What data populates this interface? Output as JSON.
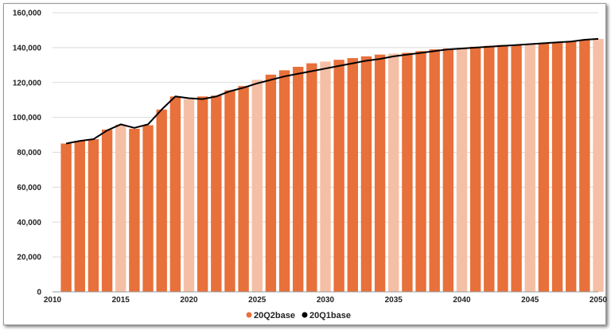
{
  "chart_data": {
    "type": "bar",
    "title": "",
    "xlabel": "",
    "ylabel": "",
    "x": [
      2011,
      2012,
      2013,
      2014,
      2015,
      2016,
      2017,
      2018,
      2019,
      2020,
      2021,
      2022,
      2023,
      2024,
      2025,
      2026,
      2027,
      2028,
      2029,
      2030,
      2031,
      2032,
      2033,
      2034,
      2035,
      2036,
      2037,
      2038,
      2039,
      2040,
      2041,
      2042,
      2043,
      2044,
      2045,
      2046,
      2047,
      2048,
      2049,
      2050
    ],
    "xlim": [
      2010,
      2050
    ],
    "ylim": [
      0,
      160000
    ],
    "x_ticks": [
      "2010",
      "2015",
      "2020",
      "2025",
      "2030",
      "2035",
      "2040",
      "2045",
      "2050"
    ],
    "y_ticks": [
      "0",
      "20,000",
      "40,000",
      "60,000",
      "80,000",
      "100,000",
      "120,000",
      "140,000",
      "160,000"
    ],
    "grid": "horizontal",
    "legend_position": "bottom",
    "series": [
      {
        "name": "20Q2base",
        "kind": "bar",
        "color": "#e8703a",
        "highlight_color": "#f5bfa5",
        "highlight_years": [
          2015,
          2020,
          2025,
          2030,
          2035,
          2040,
          2045,
          2050
        ],
        "values": [
          85000,
          86500,
          87500,
          93000,
          96000,
          93500,
          95500,
          104500,
          112000,
          110500,
          112000,
          112500,
          115500,
          118000,
          121500,
          124500,
          127000,
          129000,
          131000,
          132000,
          133000,
          134000,
          135000,
          136000,
          136500,
          137000,
          138000,
          139000,
          139500,
          140000,
          140500,
          141000,
          141500,
          141500,
          142000,
          142500,
          143000,
          143500,
          144500,
          145000
        ]
      },
      {
        "name": "20Q1base",
        "kind": "line",
        "color": "#000000",
        "values": [
          85000,
          86500,
          87500,
          92500,
          96000,
          94000,
          96000,
          104500,
          112000,
          111000,
          110500,
          112000,
          115000,
          117000,
          119500,
          121500,
          123500,
          125000,
          126500,
          128000,
          129500,
          131000,
          132500,
          133500,
          135000,
          136000,
          137000,
          138000,
          139000,
          139500,
          140000,
          140500,
          141000,
          141500,
          142000,
          142500,
          143000,
          143500,
          144500,
          145000
        ]
      }
    ]
  }
}
